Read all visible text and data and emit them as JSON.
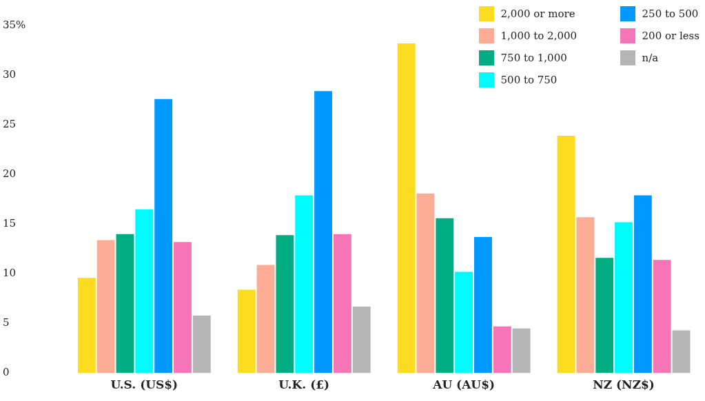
{
  "chart_data": {
    "type": "bar",
    "categories": [
      "U.S. (US$)",
      "U.K. (£)",
      "AU (AU$)",
      "NZ (NZ$)"
    ],
    "series": [
      {
        "name": "2,000 or more",
        "color": "#fddb1f",
        "values": [
          9.6,
          8.4,
          33.2,
          23.9
        ]
      },
      {
        "name": "1,000 to 2,000",
        "color": "#fdac95",
        "values": [
          13.4,
          10.9,
          18.1,
          15.7
        ]
      },
      {
        "name": "750 to 1,000",
        "color": "#00ad83",
        "values": [
          14.0,
          13.9,
          15.6,
          11.6
        ]
      },
      {
        "name": "500 to 750",
        "color": "#00fbfd",
        "values": [
          16.5,
          17.9,
          10.2,
          15.2
        ]
      },
      {
        "name": "250 to 500",
        "color": "#0099ff",
        "values": [
          27.6,
          28.4,
          13.7,
          17.9
        ]
      },
      {
        "name": "200 or less",
        "color": "#f675b6",
        "values": [
          13.2,
          14.0,
          4.7,
          11.4
        ]
      },
      {
        "name": "n/a",
        "color": "#b5b5b5",
        "values": [
          5.8,
          6.7,
          4.5,
          4.3
        ]
      }
    ],
    "ylim": [
      0,
      35
    ],
    "yticks": [
      0,
      5,
      10,
      15,
      20,
      25,
      30,
      {
        "value": 35,
        "label": "35%"
      }
    ],
    "grid": false,
    "legend": "top right"
  }
}
